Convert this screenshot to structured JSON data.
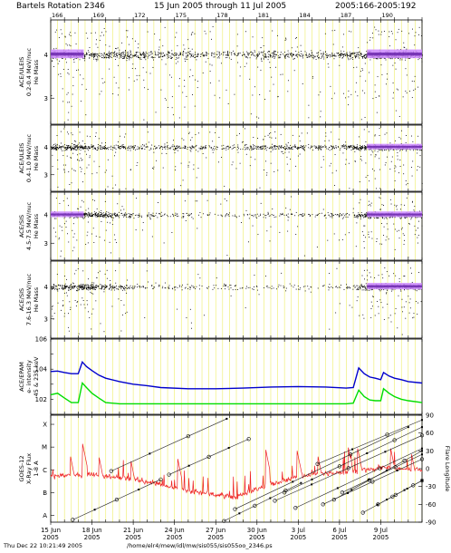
{
  "header": {
    "title": "Bartels Rotation 2346",
    "range": "15 Jun 2005 through 11 Jul 2005",
    "doy_range": "2005:166-2005:192"
  },
  "footer": {
    "timestamp": "Thu Dec 22 10:21:49 2005",
    "path": "/home/elr4/mew/idl/mw/sis055/sis055oo_2346.ps"
  },
  "chart_data": [
    {
      "type": "scatter",
      "panel": "ACE/ULEIS He mass 0.2-0.4",
      "ylabel": [
        "ACE/ULEIS",
        "0.2-0.4 MeV/nuc",
        "He Mass"
      ],
      "yticks": [
        "3",
        "4"
      ],
      "ylim": [
        2.4,
        4.8
      ],
      "x_range": [
        166,
        193
      ],
      "activity": [
        [
          166,
          0.9
        ],
        [
          168.4,
          1.0
        ],
        [
          169.6,
          0.5
        ],
        [
          172,
          0.6
        ],
        [
          176,
          0.6
        ],
        [
          177,
          0.4
        ],
        [
          180,
          0.3
        ],
        [
          181.5,
          0.6
        ],
        [
          184,
          0.4
        ],
        [
          186,
          0.4
        ],
        [
          188,
          0.7
        ],
        [
          189,
          1.0
        ],
        [
          193,
          1.0
        ]
      ]
    },
    {
      "type": "scatter",
      "panel": "ACE/ULEIS He mass 0.4-1.0",
      "ylabel": [
        "ACE/ULEIS",
        "0.4-1.0 MeV/nuc",
        "He Mass"
      ],
      "yticks": [
        "3",
        "4"
      ],
      "ylim": [
        2.4,
        4.8
      ],
      "x_range": [
        166,
        193
      ],
      "activity": [
        [
          166,
          0.6
        ],
        [
          168.4,
          1.0
        ],
        [
          169.6,
          0.4
        ],
        [
          172,
          0.3
        ],
        [
          175.5,
          0.4
        ],
        [
          178,
          0.2
        ],
        [
          181.5,
          0.5
        ],
        [
          184,
          0.4
        ],
        [
          186,
          0.3
        ],
        [
          188,
          0.6
        ],
        [
          189,
          1.0
        ],
        [
          193,
          1.0
        ]
      ]
    },
    {
      "type": "scatter",
      "panel": "ACE/SIS He mass 4.5-7.5",
      "ylabel": [
        "ACE/SIS",
        "4.5-7.5 MeV/nuc",
        "He Mass"
      ],
      "yticks": [
        "3",
        "4"
      ],
      "ylim": [
        2.4,
        4.8
      ],
      "x_range": [
        166,
        193
      ],
      "activity": [
        [
          166,
          0.9
        ],
        [
          168.4,
          1.0
        ],
        [
          171,
          0.5
        ],
        [
          172.5,
          0.2
        ],
        [
          177,
          0.1
        ],
        [
          184,
          0.15
        ],
        [
          188,
          0.2
        ],
        [
          189,
          1.0
        ],
        [
          193,
          1.0
        ]
      ]
    },
    {
      "type": "scatter",
      "panel": "ACE/SIS He mass 7.6-16.3",
      "ylabel": [
        "ACE/SIS",
        "7.6-16.3 MeV/nuc",
        "He Mass"
      ],
      "yticks": [
        "3",
        "4"
      ],
      "ylim": [
        2.4,
        4.8
      ],
      "x_range": [
        166,
        193
      ],
      "activity": [
        [
          166,
          0.5
        ],
        [
          168.4,
          0.9
        ],
        [
          171,
          0.4
        ],
        [
          172.5,
          0.15
        ],
        [
          180,
          0.1
        ],
        [
          186,
          0.1
        ],
        [
          188,
          0.15
        ],
        [
          189,
          0.9
        ],
        [
          193,
          0.9
        ]
      ]
    },
    {
      "type": "line",
      "panel": "ACE/EPAM electron intensity",
      "ylabel": [
        "ACE/EPAM",
        "e- intensity",
        "45 & 235 keV"
      ],
      "log_y": true,
      "ylim": [
        10,
        1000000
      ],
      "yticks": [
        "10^2",
        "10^4",
        "10^6"
      ],
      "series": [
        {
          "name": "45 keV",
          "color": "#0000cc",
          "x": [
            166.0,
            166.5,
            167.0,
            167.5,
            168.0,
            168.3,
            168.6,
            169.0,
            169.5,
            170.0,
            171.0,
            172.0,
            173.0,
            174.0,
            176.0,
            178.0,
            180.0,
            182.0,
            184.0,
            186.0,
            187.5,
            188.0,
            188.4,
            188.8,
            189.2,
            189.6,
            190.0,
            190.2,
            190.6,
            191.0,
            191.5,
            192.0,
            193.0
          ],
          "y": [
            7000,
            7500,
            6000,
            5000,
            5000,
            30000,
            15000,
            8000,
            4000,
            2500,
            1500,
            1000,
            800,
            600,
            500,
            500,
            550,
            650,
            700,
            650,
            550,
            600,
            12000,
            5000,
            3000,
            2500,
            2000,
            6000,
            3500,
            2500,
            2000,
            1500,
            1200
          ]
        },
        {
          "name": "235 keV",
          "color": "#00dd00",
          "x": [
            166.0,
            166.5,
            167.0,
            167.5,
            168.0,
            168.3,
            168.6,
            169.0,
            169.5,
            170.0,
            171.0,
            172.0,
            174.0,
            176.0,
            178.0,
            180.0,
            182.0,
            184.0,
            186.0,
            187.5,
            188.0,
            188.4,
            188.8,
            189.2,
            189.6,
            190.0,
            190.2,
            190.6,
            191.0,
            191.5,
            192.0,
            193.0
          ],
          "y": [
            200,
            250,
            120,
            60,
            60,
            1200,
            600,
            250,
            120,
            60,
            50,
            50,
            50,
            50,
            50,
            50,
            50,
            50,
            50,
            50,
            55,
            400,
            150,
            90,
            80,
            80,
            500,
            250,
            150,
            100,
            80,
            60
          ]
        }
      ]
    },
    {
      "type": "scatter",
      "panel": "GOES-12 X-ray flux and flare longitude",
      "ylabel": [
        "GOES-12",
        "X-Ray Flux",
        "1-8 A"
      ],
      "yticks_left": [
        "X",
        "M",
        "C",
        "B",
        "A"
      ],
      "right_axis_label": "Flare Longitude",
      "yticks_right": [
        "90",
        "60",
        "30",
        "0",
        "-30",
        "-60",
        "-90"
      ],
      "right_ylim": [
        -90,
        90
      ],
      "x_range": [
        166,
        193
      ],
      "xray_class_baseline": [
        [
          166,
          -6.3
        ],
        [
          168.5,
          -6.2
        ],
        [
          172,
          -6.4
        ],
        [
          176,
          -6.9
        ],
        [
          178,
          -7.1
        ],
        [
          179.5,
          -7.2
        ],
        [
          182,
          -6.6
        ],
        [
          185,
          -6.2
        ],
        [
          188,
          -6.1
        ],
        [
          190,
          -5.9
        ],
        [
          193,
          -6.0
        ]
      ],
      "xray_flares": [
        [
          168.3,
          -4.8
        ],
        [
          167.4,
          -5.3
        ],
        [
          169.5,
          -5.4
        ],
        [
          171.8,
          -5.5
        ],
        [
          175.2,
          -5.4
        ],
        [
          181.6,
          -5.0
        ],
        [
          183.9,
          -5.1
        ],
        [
          185.4,
          -5.3
        ],
        [
          187.6,
          -4.9
        ],
        [
          188.3,
          -5.0
        ],
        [
          190.7,
          -5.0
        ],
        [
          192.2,
          -5.2
        ]
      ],
      "flare_tracks": [
        [
          170.4,
          -4,
          178.8,
          84
        ],
        [
          167.6,
          -86,
          174.0,
          -18
        ],
        [
          178.6,
          -88,
          184.2,
          -24
        ],
        [
          179.4,
          -68,
          192.0,
          70
        ],
        [
          182.3,
          -54,
          193,
          56
        ],
        [
          183.0,
          -40,
          193,
          70
        ],
        [
          183.8,
          -66,
          193,
          34
        ],
        [
          185.8,
          -60,
          193,
          16
        ],
        [
          186.6,
          -52,
          193,
          30
        ],
        [
          187.2,
          -40,
          193,
          24
        ],
        [
          188.7,
          -74,
          193,
          -20
        ],
        [
          189.8,
          -60,
          193,
          -20
        ],
        [
          185.4,
          8,
          193,
          82
        ],
        [
          174.6,
          -10,
          180.4,
          50
        ]
      ]
    }
  ],
  "x_axis": {
    "doy_ticks": [
      "166",
      "169",
      "172",
      "175",
      "178",
      "181",
      "184",
      "187",
      "190"
    ],
    "date_labels": [
      {
        "day": "15 Jun",
        "year": "2005"
      },
      {
        "day": "18 Jun",
        "year": "2005"
      },
      {
        "day": "21 Jun",
        "year": "2005"
      },
      {
        "day": "24 Jun",
        "year": "2005"
      },
      {
        "day": "27 Jun",
        "year": "2005"
      },
      {
        "day": "30 Jun",
        "year": "2005"
      },
      {
        "day": "3 Jul",
        "year": "2005"
      },
      {
        "day": "6 Jul",
        "year": "2005"
      },
      {
        "day": "9 Jul",
        "year": "2005"
      }
    ]
  },
  "colors": {
    "grid": "#eeee66",
    "density_high": "#cc88ff",
    "density_mid": "#6622aa",
    "epam_45": "#0000cc",
    "epam_235": "#00dd00",
    "xray": "#ee2222"
  }
}
